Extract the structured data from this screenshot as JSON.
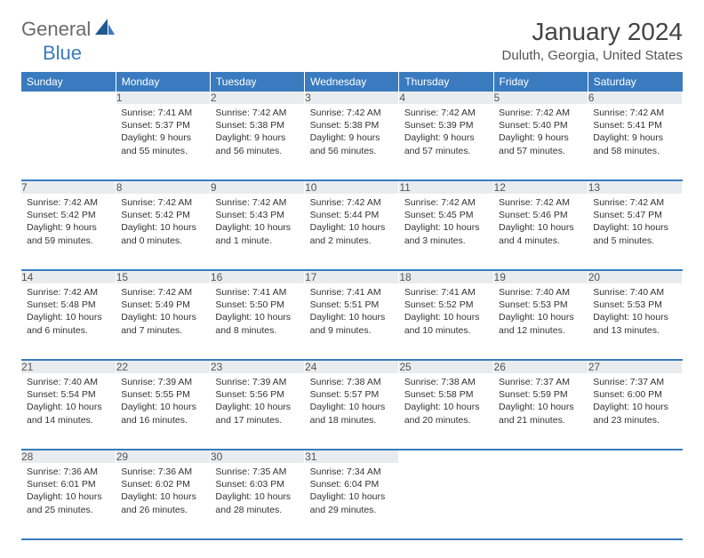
{
  "logo": {
    "part1": "General",
    "part2": "Blue"
  },
  "title": "January 2024",
  "location": "Duluth, Georgia, United States",
  "colors": {
    "header_bg": "#3a7bbf",
    "header_fg": "#ffffff",
    "daynum_bg": "#e9ecef",
    "text": "#333333",
    "logo_gray": "#6b6b6b",
    "logo_blue": "#3a7bbf",
    "row_border": "#3a7bbf"
  },
  "weekdays": [
    "Sunday",
    "Monday",
    "Tuesday",
    "Wednesday",
    "Thursday",
    "Friday",
    "Saturday"
  ],
  "weeks": [
    [
      null,
      {
        "n": "1",
        "sunrise": "Sunrise: 7:41 AM",
        "sunset": "Sunset: 5:37 PM",
        "day": "Daylight: 9 hours and 55 minutes."
      },
      {
        "n": "2",
        "sunrise": "Sunrise: 7:42 AM",
        "sunset": "Sunset: 5:38 PM",
        "day": "Daylight: 9 hours and 56 minutes."
      },
      {
        "n": "3",
        "sunrise": "Sunrise: 7:42 AM",
        "sunset": "Sunset: 5:38 PM",
        "day": "Daylight: 9 hours and 56 minutes."
      },
      {
        "n": "4",
        "sunrise": "Sunrise: 7:42 AM",
        "sunset": "Sunset: 5:39 PM",
        "day": "Daylight: 9 hours and 57 minutes."
      },
      {
        "n": "5",
        "sunrise": "Sunrise: 7:42 AM",
        "sunset": "Sunset: 5:40 PM",
        "day": "Daylight: 9 hours and 57 minutes."
      },
      {
        "n": "6",
        "sunrise": "Sunrise: 7:42 AM",
        "sunset": "Sunset: 5:41 PM",
        "day": "Daylight: 9 hours and 58 minutes."
      }
    ],
    [
      {
        "n": "7",
        "sunrise": "Sunrise: 7:42 AM",
        "sunset": "Sunset: 5:42 PM",
        "day": "Daylight: 9 hours and 59 minutes."
      },
      {
        "n": "8",
        "sunrise": "Sunrise: 7:42 AM",
        "sunset": "Sunset: 5:42 PM",
        "day": "Daylight: 10 hours and 0 minutes."
      },
      {
        "n": "9",
        "sunrise": "Sunrise: 7:42 AM",
        "sunset": "Sunset: 5:43 PM",
        "day": "Daylight: 10 hours and 1 minute."
      },
      {
        "n": "10",
        "sunrise": "Sunrise: 7:42 AM",
        "sunset": "Sunset: 5:44 PM",
        "day": "Daylight: 10 hours and 2 minutes."
      },
      {
        "n": "11",
        "sunrise": "Sunrise: 7:42 AM",
        "sunset": "Sunset: 5:45 PM",
        "day": "Daylight: 10 hours and 3 minutes."
      },
      {
        "n": "12",
        "sunrise": "Sunrise: 7:42 AM",
        "sunset": "Sunset: 5:46 PM",
        "day": "Daylight: 10 hours and 4 minutes."
      },
      {
        "n": "13",
        "sunrise": "Sunrise: 7:42 AM",
        "sunset": "Sunset: 5:47 PM",
        "day": "Daylight: 10 hours and 5 minutes."
      }
    ],
    [
      {
        "n": "14",
        "sunrise": "Sunrise: 7:42 AM",
        "sunset": "Sunset: 5:48 PM",
        "day": "Daylight: 10 hours and 6 minutes."
      },
      {
        "n": "15",
        "sunrise": "Sunrise: 7:42 AM",
        "sunset": "Sunset: 5:49 PM",
        "day": "Daylight: 10 hours and 7 minutes."
      },
      {
        "n": "16",
        "sunrise": "Sunrise: 7:41 AM",
        "sunset": "Sunset: 5:50 PM",
        "day": "Daylight: 10 hours and 8 minutes."
      },
      {
        "n": "17",
        "sunrise": "Sunrise: 7:41 AM",
        "sunset": "Sunset: 5:51 PM",
        "day": "Daylight: 10 hours and 9 minutes."
      },
      {
        "n": "18",
        "sunrise": "Sunrise: 7:41 AM",
        "sunset": "Sunset: 5:52 PM",
        "day": "Daylight: 10 hours and 10 minutes."
      },
      {
        "n": "19",
        "sunrise": "Sunrise: 7:40 AM",
        "sunset": "Sunset: 5:53 PM",
        "day": "Daylight: 10 hours and 12 minutes."
      },
      {
        "n": "20",
        "sunrise": "Sunrise: 7:40 AM",
        "sunset": "Sunset: 5:53 PM",
        "day": "Daylight: 10 hours and 13 minutes."
      }
    ],
    [
      {
        "n": "21",
        "sunrise": "Sunrise: 7:40 AM",
        "sunset": "Sunset: 5:54 PM",
        "day": "Daylight: 10 hours and 14 minutes."
      },
      {
        "n": "22",
        "sunrise": "Sunrise: 7:39 AM",
        "sunset": "Sunset: 5:55 PM",
        "day": "Daylight: 10 hours and 16 minutes."
      },
      {
        "n": "23",
        "sunrise": "Sunrise: 7:39 AM",
        "sunset": "Sunset: 5:56 PM",
        "day": "Daylight: 10 hours and 17 minutes."
      },
      {
        "n": "24",
        "sunrise": "Sunrise: 7:38 AM",
        "sunset": "Sunset: 5:57 PM",
        "day": "Daylight: 10 hours and 18 minutes."
      },
      {
        "n": "25",
        "sunrise": "Sunrise: 7:38 AM",
        "sunset": "Sunset: 5:58 PM",
        "day": "Daylight: 10 hours and 20 minutes."
      },
      {
        "n": "26",
        "sunrise": "Sunrise: 7:37 AM",
        "sunset": "Sunset: 5:59 PM",
        "day": "Daylight: 10 hours and 21 minutes."
      },
      {
        "n": "27",
        "sunrise": "Sunrise: 7:37 AM",
        "sunset": "Sunset: 6:00 PM",
        "day": "Daylight: 10 hours and 23 minutes."
      }
    ],
    [
      {
        "n": "28",
        "sunrise": "Sunrise: 7:36 AM",
        "sunset": "Sunset: 6:01 PM",
        "day": "Daylight: 10 hours and 25 minutes."
      },
      {
        "n": "29",
        "sunrise": "Sunrise: 7:36 AM",
        "sunset": "Sunset: 6:02 PM",
        "day": "Daylight: 10 hours and 26 minutes."
      },
      {
        "n": "30",
        "sunrise": "Sunrise: 7:35 AM",
        "sunset": "Sunset: 6:03 PM",
        "day": "Daylight: 10 hours and 28 minutes."
      },
      {
        "n": "31",
        "sunrise": "Sunrise: 7:34 AM",
        "sunset": "Sunset: 6:04 PM",
        "day": "Daylight: 10 hours and 29 minutes."
      },
      null,
      null,
      null
    ]
  ]
}
